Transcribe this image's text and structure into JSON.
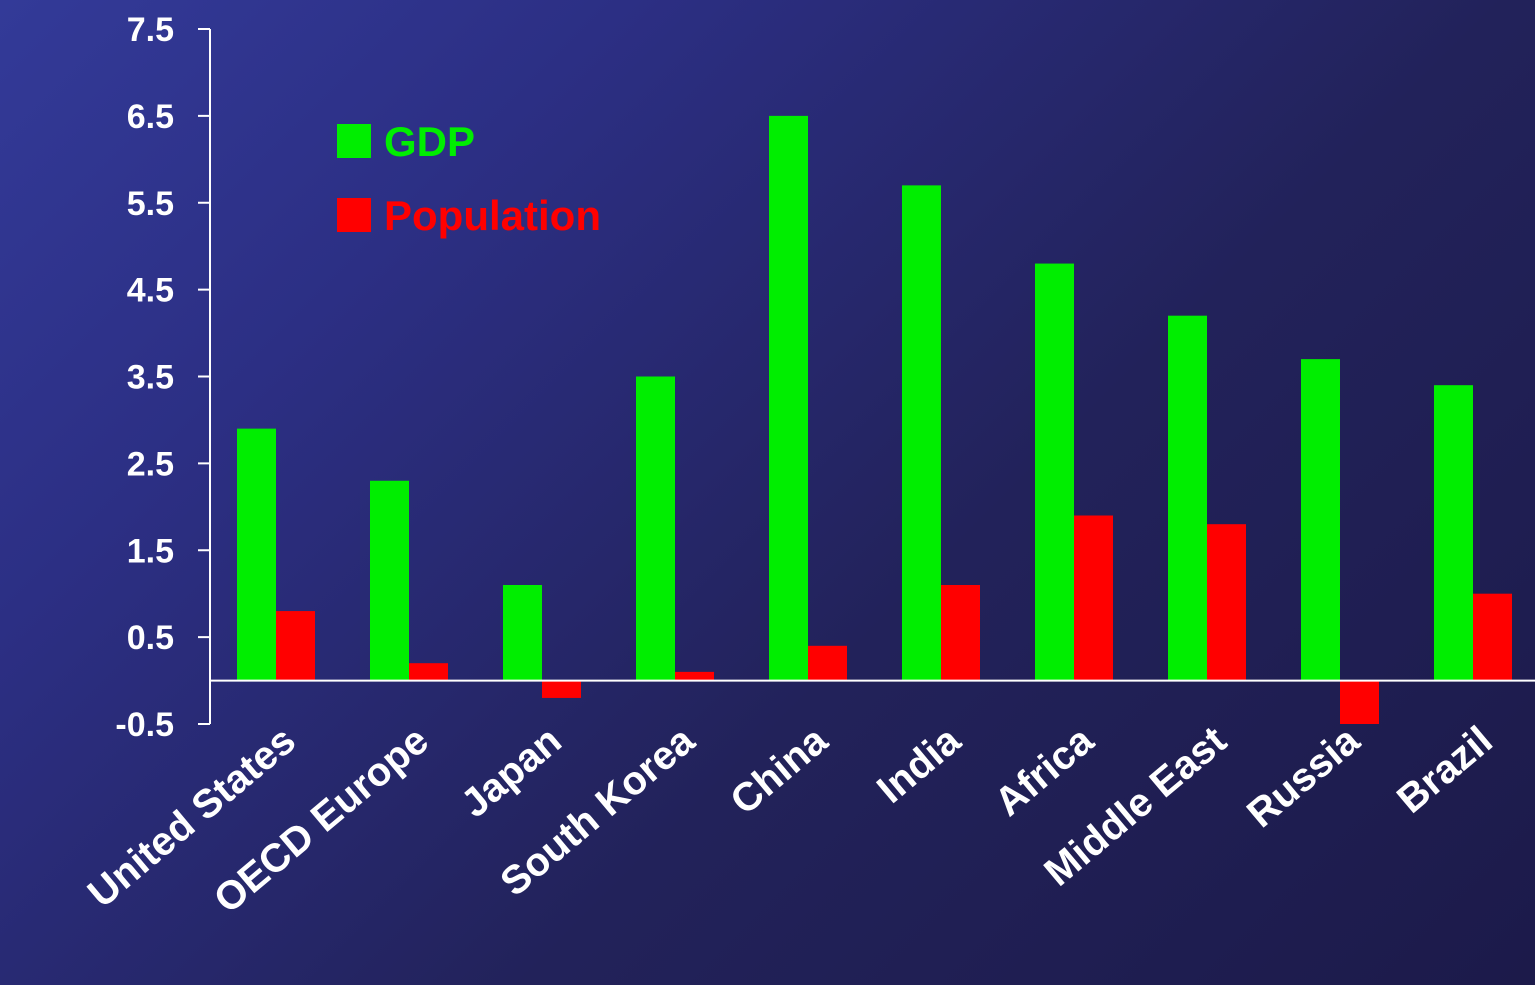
{
  "chart_data": {
    "type": "bar",
    "categories": [
      "United States",
      "OECD Europe",
      "Japan",
      "South Korea",
      "China",
      "India",
      "Africa",
      "Middle East",
      "Russia",
      "Brazil"
    ],
    "series": [
      {
        "name": "GDP",
        "color": "#00ee00",
        "values": [
          2.9,
          2.3,
          1.1,
          3.5,
          6.5,
          5.7,
          4.8,
          4.2,
          3.7,
          3.4
        ]
      },
      {
        "name": "Population",
        "color": "#ff0000",
        "values": [
          0.8,
          0.2,
          -0.2,
          0.1,
          0.4,
          1.1,
          1.9,
          1.8,
          -0.5,
          1.0
        ]
      }
    ],
    "yticks": [
      "7.5",
      "6.5",
      "5.5",
      "4.5",
      "3.5",
      "2.5",
      "1.5",
      "0.5",
      "-0.5"
    ],
    "ylim": [
      -0.5,
      7.5
    ],
    "legend_position": "top-left",
    "title": "",
    "xlabel": "",
    "ylabel": ""
  }
}
